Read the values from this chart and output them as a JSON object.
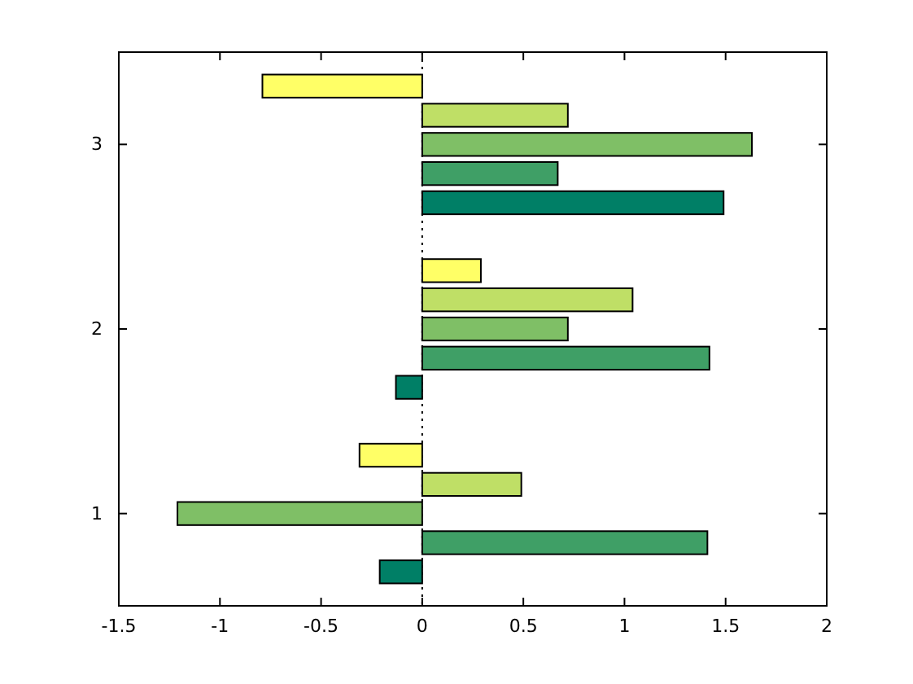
{
  "chart_data": {
    "type": "bar",
    "orientation": "horizontal",
    "categories": [
      "3",
      "2",
      "1"
    ],
    "series": [
      {
        "color": "#007f66",
        "values": [
          1.49,
          -0.13,
          -0.21
        ]
      },
      {
        "color": "#3f9f66",
        "values": [
          0.67,
          1.42,
          1.41
        ]
      },
      {
        "color": "#7fbf66",
        "values": [
          1.63,
          0.72,
          -1.21
        ]
      },
      {
        "color": "#bfdf66",
        "values": [
          0.72,
          1.04,
          0.49
        ]
      },
      {
        "color": "#ffff66",
        "values": [
          -0.79,
          0.29,
          -0.31
        ]
      }
    ],
    "xlim": [
      -1.5,
      2
    ],
    "xticks": [
      -1.5,
      -1,
      -0.5,
      0,
      0.5,
      1,
      1.5,
      2
    ],
    "ref_lines": [
      {
        "axis": "x",
        "value": 0,
        "line_style": "dotted",
        "color": "#000000"
      }
    ],
    "grid": false,
    "legend": false
  }
}
